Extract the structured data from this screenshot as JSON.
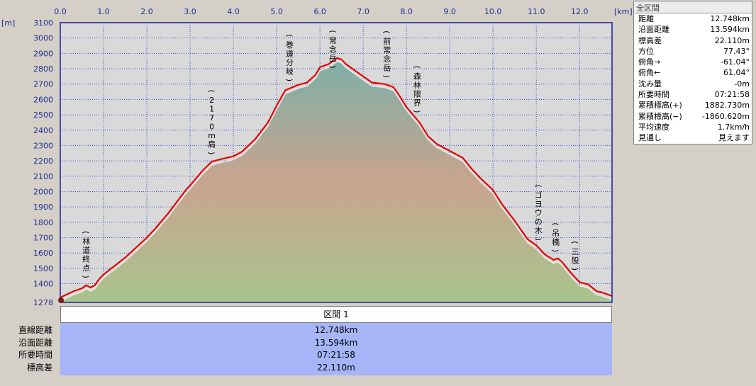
{
  "chart_data": {
    "type": "area",
    "xlabel_unit": "[km]",
    "ylabel_unit": "[m]",
    "xlim": [
      0,
      12.75
    ],
    "ylim": [
      1278,
      3100
    ],
    "x_ticks": [
      "0.0",
      "1.0",
      "2.0",
      "3.0",
      "4.0",
      "5.0",
      "6.0",
      "7.0",
      "8.0",
      "9.0",
      "10.0",
      "11.0",
      "12.0"
    ],
    "y_ticks": [
      "3100",
      "3000",
      "2900",
      "2800",
      "2700",
      "2600",
      "2500",
      "2400",
      "2300",
      "2200",
      "2100",
      "2000",
      "1900",
      "1800",
      "1700",
      "1600",
      "1500",
      "1400",
      "1278"
    ],
    "series": [
      {
        "x": [
          0,
          0.3,
          0.5,
          0.6,
          0.7,
          0.8,
          0.9,
          1.0,
          1.5,
          2.0,
          2.2,
          2.5,
          2.9,
          3.0,
          3.3,
          3.5,
          3.7,
          4.0,
          4.2,
          4.5,
          4.8,
          5.0,
          5.2,
          5.5,
          5.7,
          5.9,
          6.0,
          6.2,
          6.4,
          6.5,
          6.6,
          6.8,
          7.0,
          7.2,
          7.5,
          7.7,
          7.8,
          8.0,
          8.3,
          8.5,
          8.7,
          8.9,
          9.1,
          9.3,
          9.5,
          9.7,
          10.0,
          10.2,
          10.5,
          10.8,
          11.0,
          11.2,
          11.4,
          11.5,
          11.6,
          11.8,
          12.0,
          12.2,
          12.4,
          12.5,
          12.75
        ],
        "y": [
          1310,
          1350,
          1370,
          1390,
          1375,
          1390,
          1430,
          1460,
          1570,
          1700,
          1760,
          1860,
          2010,
          2040,
          2140,
          2195,
          2210,
          2230,
          2260,
          2340,
          2450,
          2560,
          2660,
          2695,
          2710,
          2760,
          2810,
          2830,
          2870,
          2860,
          2830,
          2790,
          2750,
          2710,
          2700,
          2680,
          2640,
          2550,
          2450,
          2360,
          2310,
          2280,
          2250,
          2220,
          2150,
          2090,
          2010,
          1920,
          1810,
          1690,
          1650,
          1590,
          1555,
          1565,
          1540,
          1470,
          1410,
          1395,
          1350,
          1345,
          1320
        ]
      }
    ],
    "annotations": [
      {
        "label": "林道終点",
        "x": 0.6
      },
      {
        "label": "2170m肩",
        "x": 3.5
      },
      {
        "label": "巻道分岐",
        "x": 5.3
      },
      {
        "label": "常念岳",
        "x": 6.3
      },
      {
        "label": "前常念岳",
        "x": 7.55
      },
      {
        "label": "森林限界",
        "x": 8.25
      },
      {
        "label": "ゴヨウの木",
        "x": 11.05
      },
      {
        "label": "吊橋",
        "x": 11.45
      },
      {
        "label": "三股",
        "x": 11.9
      }
    ]
  },
  "stats": {
    "title": "全区間",
    "rows": [
      {
        "label": "距離",
        "value": "12.748km"
      },
      {
        "label": "沿面距離",
        "value": "13.594km"
      },
      {
        "label": "標高差",
        "value": "22.110m"
      },
      {
        "label": "方位",
        "value": "77.43°"
      },
      {
        "label": "俯角→",
        "value": "-61.04°"
      },
      {
        "label": "俯角←",
        "value": "61.04°"
      },
      {
        "label": "沈み量",
        "value": "-0m"
      },
      {
        "label": "所要時間",
        "value": "07:21:58"
      },
      {
        "label": "累積標高(+)",
        "value": "1882.730m"
      },
      {
        "label": "累積標高(−)",
        "value": "-1860.620m"
      },
      {
        "label": "平均速度",
        "value": "1.7km/h"
      },
      {
        "label": "見通し",
        "value": "見えます"
      }
    ]
  },
  "summary": {
    "section_title": "区間 1",
    "rows": [
      {
        "label": "直線距離",
        "value": "12.748km"
      },
      {
        "label": "沿面距離",
        "value": "13.594km"
      },
      {
        "label": "所要時間",
        "value": "07:21:58"
      },
      {
        "label": "標高差",
        "value": "22.110m"
      }
    ]
  },
  "colors": {
    "line": "#e60000",
    "grid_border": "#1a1aa0",
    "grid_line": "#3a4fd0",
    "plot_bg": "#d9d9d9",
    "summary_bg": "#a5b5f8",
    "fill_top": "#7fafa6",
    "fill_mid": "#c8a48e",
    "fill_bottom": "#a9c48e"
  }
}
